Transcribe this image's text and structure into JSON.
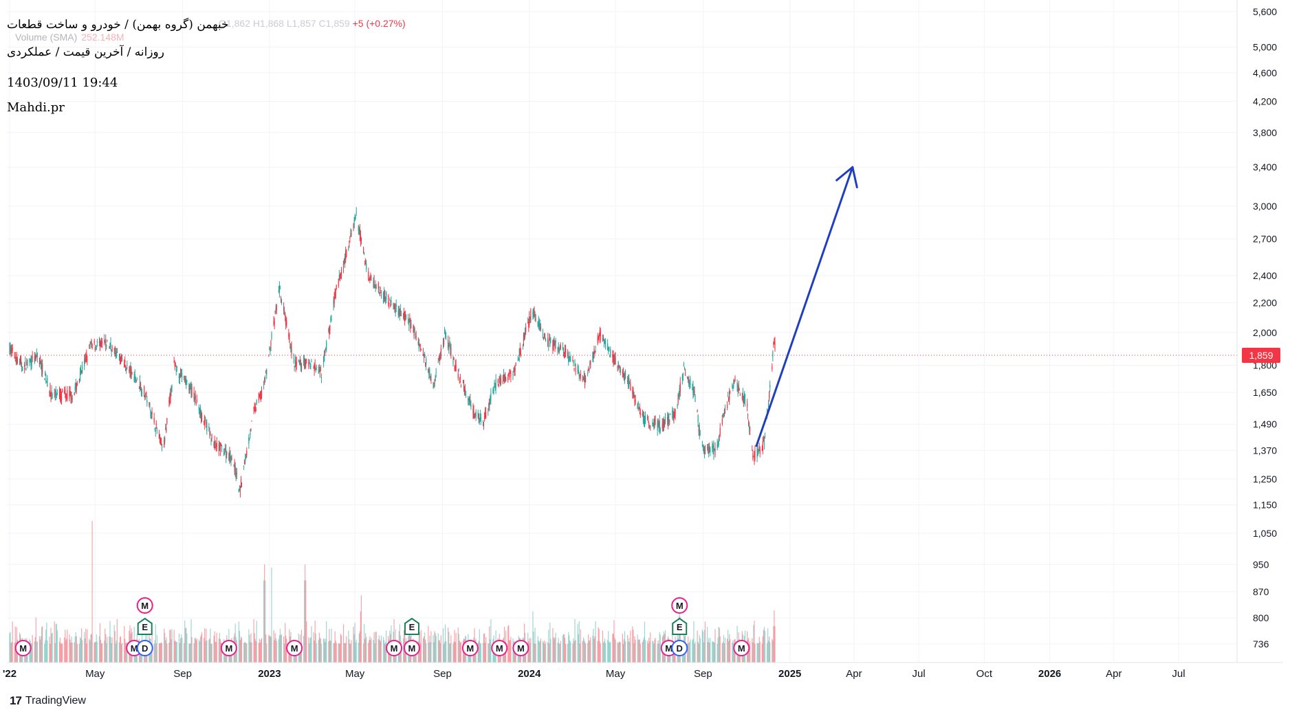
{
  "header": {
    "title": "خبهمن (گروه بهمن) / خودرو و ساخت قطعات",
    "subtitle": "روزانه / آخرین قیمت / عملکردی",
    "date": "1403/09/11 19:44",
    "author": "Mahdi.pr",
    "ohlc_ghost": "O1,862 H1,868 L1,857 C1,859",
    "change": "+5 (+0.27%)",
    "volume_label": "Volume (SMA)",
    "volume_value": "252.148M"
  },
  "brand": {
    "name": "TradingView",
    "logo_icon": "tradingview-logo-icon"
  },
  "colors": {
    "up": "#26a69a",
    "down": "#f23645",
    "arrow": "#1f3fbf",
    "event_m": "#e91e8c",
    "event_e": "#1b7f5c",
    "event_d": "#2962ff",
    "grid": "#f0f3fa"
  },
  "chart_data": {
    "type": "candlestick",
    "title": "خبهمن (گروه بهمن) / خودرو و ساخت قطعات",
    "interval": "daily",
    "y_scale": "log",
    "ylim": [
      700,
      5700
    ],
    "y_ticks": [
      5600,
      5000,
      4600,
      4200,
      3800,
      3400,
      3000,
      2700,
      2400,
      2200,
      2000,
      1800,
      1650,
      1490,
      1370,
      1250,
      1150,
      1050,
      950,
      870,
      800,
      736
    ],
    "y_tick_labels": [
      "5,600",
      "5,000",
      "4,600",
      "4,200",
      "3,800",
      "3,400",
      "3,000",
      "2,700",
      "2,400",
      "2,200",
      "2,000",
      "1,800",
      "1,650",
      "1,490",
      "1,370",
      "1,250",
      "1,150",
      "1,050",
      "950",
      "870",
      "800",
      "736"
    ],
    "x_ticks": [
      "2022-01",
      "2022-05",
      "2022-09",
      "2023-01",
      "2023-05",
      "2023-09",
      "2024-01",
      "2024-05",
      "2024-09",
      "2025-01",
      "2025-04",
      "2025-07",
      "2025-10",
      "2026-01",
      "2026-04",
      "2026-07"
    ],
    "x_tick_labels": [
      "'22",
      "May",
      "Sep",
      "2023",
      "May",
      "Sep",
      "2024",
      "May",
      "Sep",
      "2025",
      "Apr",
      "Jul",
      "Oct",
      "2026",
      "Apr",
      "Jul"
    ],
    "x_tick_bold": [
      true,
      false,
      false,
      true,
      false,
      false,
      true,
      false,
      false,
      true,
      false,
      false,
      false,
      true,
      false,
      false
    ],
    "last_price": 1859,
    "last_price_label": "1,859",
    "price_path": [
      [
        "2022-01-01",
        1900
      ],
      [
        "2022-01-20",
        1790
      ],
      [
        "2022-02-10",
        1850
      ],
      [
        "2022-03-01",
        1640
      ],
      [
        "2022-04-01",
        1640
      ],
      [
        "2022-04-25",
        1920
      ],
      [
        "2022-05-20",
        1930
      ],
      [
        "2022-06-15",
        1790
      ],
      [
        "2022-07-10",
        1650
      ],
      [
        "2022-08-05",
        1370
      ],
      [
        "2022-08-20",
        1800
      ],
      [
        "2022-09-15",
        1650
      ],
      [
        "2022-10-15",
        1400
      ],
      [
        "2022-11-10",
        1340
      ],
      [
        "2022-11-20",
        1200
      ],
      [
        "2022-12-10",
        1550
      ],
      [
        "2022-12-25",
        1700
      ],
      [
        "2023-01-15",
        2300
      ],
      [
        "2023-02-05",
        1800
      ],
      [
        "2023-02-25",
        1820
      ],
      [
        "2023-03-15",
        1750
      ],
      [
        "2023-04-05",
        2300
      ],
      [
        "2023-05-03",
        2900
      ],
      [
        "2023-05-20",
        2400
      ],
      [
        "2023-06-20",
        2200
      ],
      [
        "2023-07-20",
        2050
      ],
      [
        "2023-08-20",
        1700
      ],
      [
        "2023-09-05",
        2000
      ],
      [
        "2023-09-20",
        1780
      ],
      [
        "2023-10-15",
        1550
      ],
      [
        "2023-10-28",
        1500
      ],
      [
        "2023-11-15",
        1700
      ],
      [
        "2023-12-10",
        1760
      ],
      [
        "2024-01-05",
        2150
      ],
      [
        "2024-01-25",
        1950
      ],
      [
        "2024-02-20",
        1880
      ],
      [
        "2024-03-20",
        1700
      ],
      [
        "2024-04-08",
        1990
      ],
      [
        "2024-04-25",
        1860
      ],
      [
        "2024-05-20",
        1700
      ],
      [
        "2024-06-10",
        1510
      ],
      [
        "2024-07-05",
        1480
      ],
      [
        "2024-07-25",
        1550
      ],
      [
        "2024-08-05",
        1790
      ],
      [
        "2024-08-20",
        1650
      ],
      [
        "2024-08-30",
        1380
      ],
      [
        "2024-09-20",
        1370
      ],
      [
        "2024-10-01",
        1550
      ],
      [
        "2024-10-15",
        1710
      ],
      [
        "2024-11-01",
        1600
      ],
      [
        "2024-11-10",
        1340
      ],
      [
        "2024-11-25",
        1390
      ],
      [
        "2024-12-05",
        1700
      ],
      [
        "2024-12-10",
        1960
      ],
      [
        "2024-12-12",
        1859
      ]
    ],
    "volume_peaks": [
      [
        "2022-04-28",
        1150
      ],
      [
        "2022-12-25",
        950
      ],
      [
        "2023-01-05",
        990
      ],
      [
        "2023-02-20",
        950
      ],
      [
        "2023-05-10",
        860
      ],
      [
        "2024-01-05",
        860
      ],
      [
        "2024-07-30",
        845
      ],
      [
        "2024-12-10",
        820
      ]
    ],
    "events": [
      {
        "label": "M",
        "date": "2022-01-20",
        "kind": "dividend"
      },
      {
        "label": "M",
        "date": "2022-06-25",
        "kind": "dividend"
      },
      {
        "label": "D",
        "date": "2022-07-10",
        "kind": "split"
      },
      {
        "label": "E",
        "date": "2022-07-10",
        "kind": "earnings"
      },
      {
        "label": "M",
        "date": "2022-07-10",
        "kind": "dividend"
      },
      {
        "label": "M",
        "date": "2022-11-05",
        "kind": "dividend"
      },
      {
        "label": "M",
        "date": "2023-02-05",
        "kind": "dividend"
      },
      {
        "label": "M",
        "date": "2023-06-25",
        "kind": "dividend"
      },
      {
        "label": "M",
        "date": "2023-07-20",
        "kind": "dividend"
      },
      {
        "label": "E",
        "date": "2023-07-20",
        "kind": "earnings"
      },
      {
        "label": "M",
        "date": "2023-10-10",
        "kind": "dividend"
      },
      {
        "label": "M",
        "date": "2023-11-20",
        "kind": "dividend"
      },
      {
        "label": "M",
        "date": "2023-12-20",
        "kind": "dividend"
      },
      {
        "label": "M",
        "date": "2024-07-15",
        "kind": "dividend"
      },
      {
        "label": "D",
        "date": "2024-07-30",
        "kind": "split"
      },
      {
        "label": "E",
        "date": "2024-07-30",
        "kind": "earnings"
      },
      {
        "label": "M",
        "date": "2024-07-30",
        "kind": "dividend"
      },
      {
        "label": "M",
        "date": "2024-10-25",
        "kind": "dividend"
      }
    ],
    "arrow": {
      "from": [
        "2024-11-15",
        1390
      ],
      "to": [
        "2025-03-30",
        3400
      ]
    }
  }
}
